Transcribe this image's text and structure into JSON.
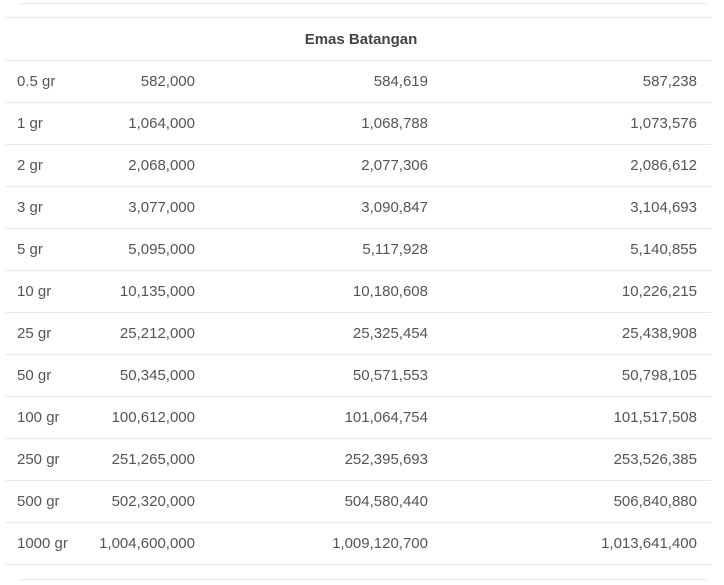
{
  "table": {
    "title": "Emas Batangan",
    "rows": [
      {
        "weight": "0.5 gr",
        "col1": "582,000",
        "col2": "584,619",
        "col3": "587,238"
      },
      {
        "weight": "1 gr",
        "col1": "1,064,000",
        "col2": "1,068,788",
        "col3": "1,073,576"
      },
      {
        "weight": "2 gr",
        "col1": "2,068,000",
        "col2": "2,077,306",
        "col3": "2,086,612"
      },
      {
        "weight": "3 gr",
        "col1": "3,077,000",
        "col2": "3,090,847",
        "col3": "3,104,693"
      },
      {
        "weight": "5 gr",
        "col1": "5,095,000",
        "col2": "5,117,928",
        "col3": "5,140,855"
      },
      {
        "weight": "10 gr",
        "col1": "10,135,000",
        "col2": "10,180,608",
        "col3": "10,226,215"
      },
      {
        "weight": "25 gr",
        "col1": "25,212,000",
        "col2": "25,325,454",
        "col3": "25,438,908"
      },
      {
        "weight": "50 gr",
        "col1": "50,345,000",
        "col2": "50,571,553",
        "col3": "50,798,105"
      },
      {
        "weight": "100 gr",
        "col1": "100,612,000",
        "col2": "101,064,754",
        "col3": "101,517,508"
      },
      {
        "weight": "250 gr",
        "col1": "251,265,000",
        "col2": "252,395,693",
        "col3": "253,526,385"
      },
      {
        "weight": "500 gr",
        "col1": "502,320,000",
        "col2": "504,580,440",
        "col3": "506,840,880"
      },
      {
        "weight": "1000 gr",
        "col1": "1,004,600,000",
        "col2": "1,009,120,700",
        "col3": "1,013,641,400"
      }
    ]
  }
}
